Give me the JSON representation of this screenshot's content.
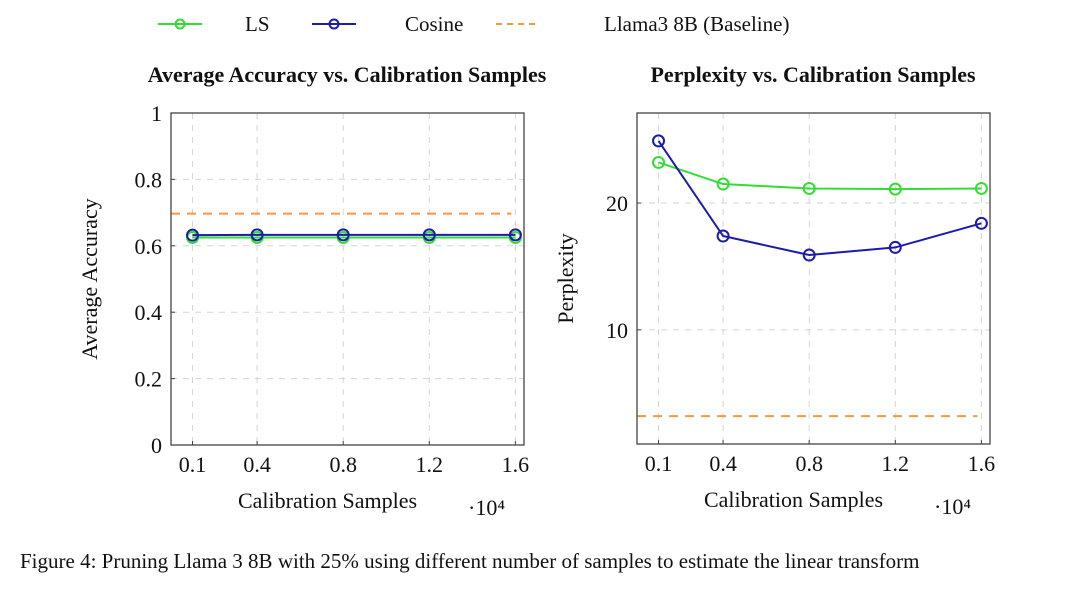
{
  "legend": [
    {
      "label": "LS",
      "color": "#33dd33",
      "style": "solid-circle"
    },
    {
      "label": "Cosine",
      "color": "#1c1caa",
      "style": "solid-circle"
    },
    {
      "label": "Llama3 8B (Baseline)",
      "color": "#f09a3c",
      "style": "dashed"
    }
  ],
  "caption": "Figure 4: Pruning Llama 3 8B with 25% using different number of samples to estimate the linear transform",
  "chart_data": [
    {
      "type": "line",
      "title": "Average Accuracy vs. Calibration Samples",
      "xlabel": "Calibration Samples",
      "xscale_label": "·10⁴",
      "ylabel": "Average Accuracy",
      "x": [
        0.1,
        0.4,
        0.8,
        1.2,
        1.6
      ],
      "xticks": [
        "0.1",
        "0.4",
        "0.8",
        "1.2",
        "1.6"
      ],
      "xlim": [
        0.0,
        1.64
      ],
      "ylim": [
        0,
        1
      ],
      "yticks": [
        0,
        0.2,
        0.4,
        0.6,
        0.8,
        1
      ],
      "ytick_labels": [
        "0",
        "0.2",
        "0.4",
        "0.6",
        "0.8",
        "1"
      ],
      "grid": true,
      "series": [
        {
          "name": "LS",
          "values": [
            0.625,
            0.625,
            0.625,
            0.625,
            0.625
          ]
        },
        {
          "name": "Cosine",
          "values": [
            0.632,
            0.633,
            0.633,
            0.633,
            0.633
          ]
        }
      ],
      "baseline": {
        "name": "Llama3 8B (Baseline)",
        "value": 0.697
      }
    },
    {
      "type": "line",
      "title": "Perplexity vs. Calibration Samples",
      "xlabel": "Calibration Samples",
      "xscale_label": "·10⁴",
      "ylabel": "Perplexity",
      "x": [
        0.1,
        0.4,
        0.8,
        1.2,
        1.6
      ],
      "xticks": [
        "0.1",
        "0.4",
        "0.8",
        "1.2",
        "1.6"
      ],
      "xlim": [
        0.0,
        1.64
      ],
      "ylim": [
        1,
        27.1
      ],
      "yticks": [
        10,
        20
      ],
      "ytick_labels": [
        "10",
        "20"
      ],
      "grid": true,
      "series": [
        {
          "name": "LS",
          "values": [
            23.2,
            21.5,
            21.15,
            21.1,
            21.15
          ]
        },
        {
          "name": "Cosine",
          "values": [
            24.9,
            17.4,
            15.9,
            16.5,
            18.4
          ]
        }
      ],
      "baseline": {
        "name": "Llama3 8B (Baseline)",
        "value": 3.2
      }
    }
  ]
}
